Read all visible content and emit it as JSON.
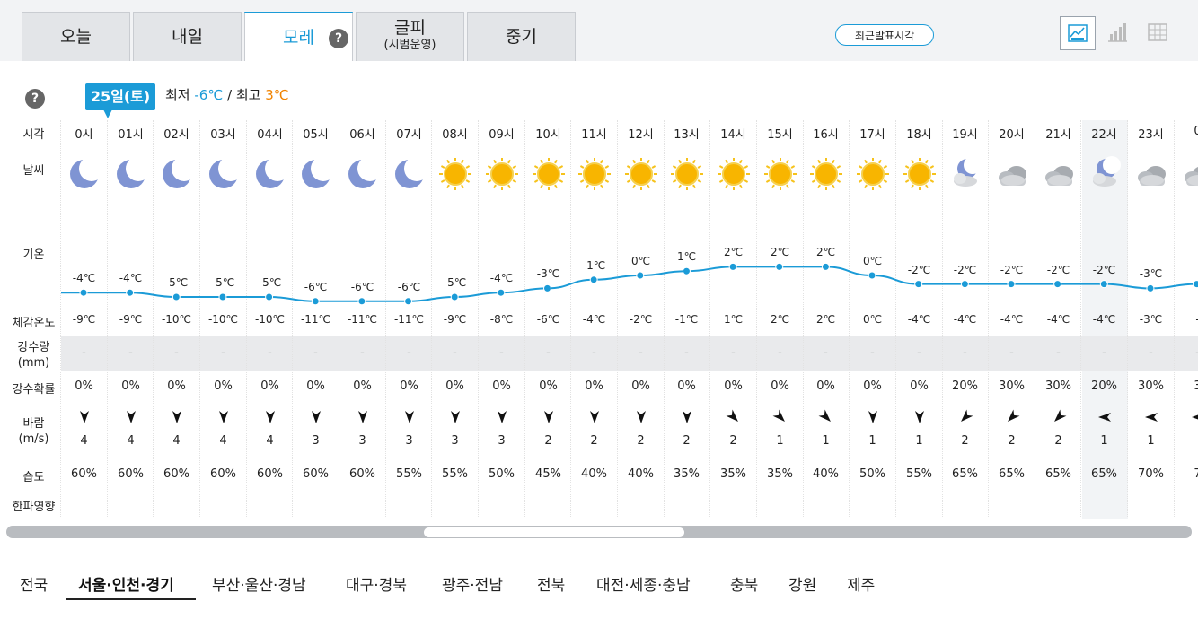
{
  "tabs": [
    {
      "label": "오늘",
      "sub": ""
    },
    {
      "label": "내일",
      "sub": ""
    },
    {
      "label": "모레",
      "sub": "",
      "active": true
    },
    {
      "label": "글피",
      "sub": "(시범운영)"
    },
    {
      "label": "중기",
      "sub": ""
    }
  ],
  "latest_button": "최근발표시각",
  "view_icons": [
    "line-chart-icon",
    "bar-chart-icon",
    "table-icon"
  ],
  "day": {
    "tag": "25일(토)",
    "min_label": "최저",
    "min": "-6℃",
    "sep": "/",
    "max_label": "최고",
    "max": "3℃"
  },
  "row_labels": {
    "time": "시각",
    "weather": "날씨",
    "temp": "기온",
    "feels": "체감온도",
    "rain_1": "강수량",
    "rain_2": "(mm)",
    "prob": "강수확률",
    "wind_1": "바람",
    "wind_2": "(m/s)",
    "humidity": "습도",
    "cold": "한파영향"
  },
  "hours": [
    {
      "time": "0시",
      "icon": "moon",
      "temp": "-4℃",
      "t": -4,
      "feels": "-9℃",
      "rain": "-",
      "prob": "0%",
      "wdir": 0,
      "wspd": "4",
      "hum": "60%"
    },
    {
      "time": "01시",
      "icon": "moon",
      "temp": "-4℃",
      "t": -4,
      "feels": "-9℃",
      "rain": "-",
      "prob": "0%",
      "wdir": 0,
      "wspd": "4",
      "hum": "60%"
    },
    {
      "time": "02시",
      "icon": "moon",
      "temp": "-5℃",
      "t": -5,
      "feels": "-10℃",
      "rain": "-",
      "prob": "0%",
      "wdir": 0,
      "wspd": "4",
      "hum": "60%"
    },
    {
      "time": "03시",
      "icon": "moon",
      "temp": "-5℃",
      "t": -5,
      "feels": "-10℃",
      "rain": "-",
      "prob": "0%",
      "wdir": 0,
      "wspd": "4",
      "hum": "60%"
    },
    {
      "time": "04시",
      "icon": "moon",
      "temp": "-5℃",
      "t": -5,
      "feels": "-10℃",
      "rain": "-",
      "prob": "0%",
      "wdir": 0,
      "wspd": "4",
      "hum": "60%"
    },
    {
      "time": "05시",
      "icon": "moon",
      "temp": "-6℃",
      "t": -6,
      "feels": "-11℃",
      "rain": "-",
      "prob": "0%",
      "wdir": 0,
      "wspd": "3",
      "hum": "60%"
    },
    {
      "time": "06시",
      "icon": "moon",
      "temp": "-6℃",
      "t": -6,
      "feels": "-11℃",
      "rain": "-",
      "prob": "0%",
      "wdir": 0,
      "wspd": "3",
      "hum": "60%"
    },
    {
      "time": "07시",
      "icon": "moon",
      "temp": "-6℃",
      "t": -6,
      "feels": "-11℃",
      "rain": "-",
      "prob": "0%",
      "wdir": 0,
      "wspd": "3",
      "hum": "55%"
    },
    {
      "time": "08시",
      "icon": "sun",
      "temp": "-5℃",
      "t": -5,
      "feels": "-9℃",
      "rain": "-",
      "prob": "0%",
      "wdir": 0,
      "wspd": "3",
      "hum": "55%"
    },
    {
      "time": "09시",
      "icon": "sun",
      "temp": "-4℃",
      "t": -4,
      "feels": "-8℃",
      "rain": "-",
      "prob": "0%",
      "wdir": 0,
      "wspd": "3",
      "hum": "50%"
    },
    {
      "time": "10시",
      "icon": "sun",
      "temp": "-3℃",
      "t": -3,
      "feels": "-6℃",
      "rain": "-",
      "prob": "0%",
      "wdir": 0,
      "wspd": "2",
      "hum": "45%"
    },
    {
      "time": "11시",
      "icon": "sun",
      "temp": "-1℃",
      "t": -1,
      "feels": "-4℃",
      "rain": "-",
      "prob": "0%",
      "wdir": 0,
      "wspd": "2",
      "hum": "40%"
    },
    {
      "time": "12시",
      "icon": "sun",
      "temp": "0℃",
      "t": 0,
      "feels": "-2℃",
      "rain": "-",
      "prob": "0%",
      "wdir": 0,
      "wspd": "2",
      "hum": "40%"
    },
    {
      "time": "13시",
      "icon": "sun",
      "temp": "1℃",
      "t": 1,
      "feels": "-1℃",
      "rain": "-",
      "prob": "0%",
      "wdir": 0,
      "wspd": "2",
      "hum": "35%"
    },
    {
      "time": "14시",
      "icon": "sun",
      "temp": "2℃",
      "t": 2,
      "feels": "1℃",
      "rain": "-",
      "prob": "0%",
      "wdir": -45,
      "wspd": "2",
      "hum": "35%"
    },
    {
      "time": "15시",
      "icon": "sun",
      "temp": "2℃",
      "t": 2,
      "feels": "2℃",
      "rain": "-",
      "prob": "0%",
      "wdir": -45,
      "wspd": "1",
      "hum": "35%"
    },
    {
      "time": "16시",
      "icon": "sun",
      "temp": "2℃",
      "t": 2,
      "feels": "2℃",
      "rain": "-",
      "prob": "0%",
      "wdir": -45,
      "wspd": "1",
      "hum": "40%"
    },
    {
      "time": "17시",
      "icon": "sun",
      "temp": "0℃",
      "t": 0,
      "feels": "0℃",
      "rain": "-",
      "prob": "0%",
      "wdir": 0,
      "wspd": "1",
      "hum": "50%"
    },
    {
      "time": "18시",
      "icon": "sun",
      "temp": "-2℃",
      "t": -2,
      "feels": "-4℃",
      "rain": "-",
      "prob": "0%",
      "wdir": 0,
      "wspd": "1",
      "hum": "55%"
    },
    {
      "time": "19시",
      "icon": "moon-cloud",
      "temp": "-2℃",
      "t": -2,
      "feels": "-4℃",
      "rain": "-",
      "prob": "20%",
      "wdir": 45,
      "wspd": "2",
      "hum": "65%"
    },
    {
      "time": "20시",
      "icon": "cloud",
      "temp": "-2℃",
      "t": -2,
      "feels": "-4℃",
      "rain": "-",
      "prob": "30%",
      "wdir": 45,
      "wspd": "2",
      "hum": "65%"
    },
    {
      "time": "21시",
      "icon": "cloud",
      "temp": "-2℃",
      "t": -2,
      "feels": "-4℃",
      "rain": "-",
      "prob": "30%",
      "wdir": 45,
      "wspd": "2",
      "hum": "65%"
    },
    {
      "time": "22시",
      "icon": "moon-cloud",
      "temp": "-2℃",
      "t": -2,
      "feels": "-4℃",
      "rain": "-",
      "prob": "20%",
      "wdir": 90,
      "wspd": "1",
      "hum": "65%"
    },
    {
      "time": "23시",
      "icon": "cloud",
      "temp": "-3℃",
      "t": -3,
      "feels": "-3℃",
      "rain": "-",
      "prob": "30%",
      "wdir": 90,
      "wspd": "1",
      "hum": "70%"
    },
    {
      "time": "0",
      "icon": "cloud",
      "temp": "",
      "t": -2,
      "feels": "-",
      "rain": "-",
      "prob": "3",
      "wdir": 90,
      "wspd": "",
      "hum": "7"
    }
  ],
  "regions": [
    "전국",
    "서울·인천·경기",
    "부산·울산·경남",
    "대구·경북",
    "광주·전남",
    "전북",
    "대전·세종·충남",
    "충북",
    "강원",
    "제주"
  ],
  "active_region": 1,
  "colors": {
    "accent": "#1b9bd7",
    "warm": "#f08300",
    "line": "#1b9bd7"
  }
}
